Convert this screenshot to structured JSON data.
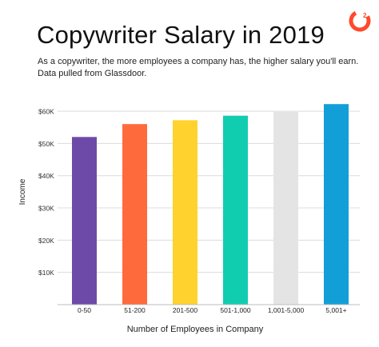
{
  "brand": {
    "logo_text": "G2",
    "logo_color": "#ff492c"
  },
  "header": {
    "title": "Copywriter Salary in 2019",
    "subtitle": "As a copywriter, the more employees a company has, the higher salary you'll earn. Data pulled from Glassdoor."
  },
  "chart_data": {
    "type": "bar",
    "categories": [
      "0-50",
      "51-200",
      "201-500",
      "501-1,000",
      "1,001-5,000",
      "5,001+"
    ],
    "values": [
      52000,
      56000,
      57200,
      58600,
      59800,
      62200
    ],
    "colors": [
      "#6d4aa8",
      "#ff6a3d",
      "#ffd22e",
      "#11cdb0",
      "#e4e4e4",
      "#129fd8"
    ],
    "xlabel": "Number of Employees in Company",
    "ylabel": "Income",
    "ylim": [
      0,
      62000
    ],
    "yticks": [
      10000,
      20000,
      30000,
      40000,
      50000,
      60000
    ],
    "ytick_labels": [
      "$10K",
      "$20K",
      "$30K",
      "$40K",
      "$50K",
      "$60K"
    ],
    "grid": true
  }
}
